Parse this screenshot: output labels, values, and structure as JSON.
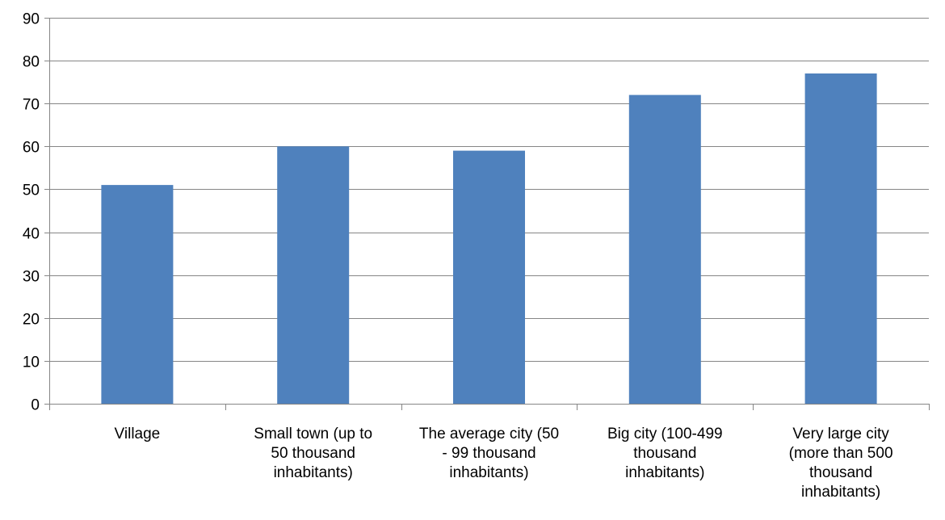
{
  "chart_data": {
    "type": "bar",
    "categories": [
      [
        "Village"
      ],
      [
        "Small town (up to",
        "50 thousand",
        "inhabitants)"
      ],
      [
        "The average city (50",
        "- 99 thousand",
        "inhabitants)"
      ],
      [
        "Big city (100-499",
        "thousand",
        "inhabitants)"
      ],
      [
        "Very large city",
        "(more than 500",
        "thousand",
        "inhabitants)"
      ]
    ],
    "values": [
      51,
      60,
      59,
      72,
      77
    ],
    "ylim": [
      0,
      90
    ],
    "yticks": [
      "0",
      "10",
      "20",
      "30",
      "40",
      "50",
      "60",
      "70",
      "80",
      "90"
    ],
    "grid": true,
    "bar_color": "#4f81bd",
    "gridline_color": "#868686"
  }
}
